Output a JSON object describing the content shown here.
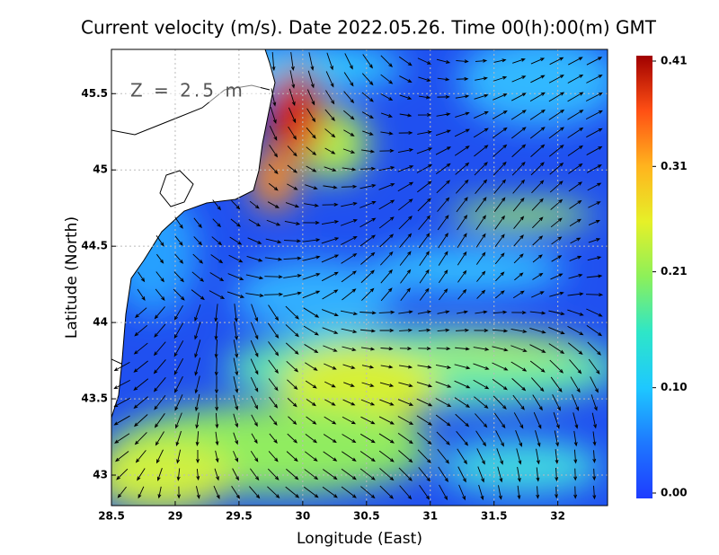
{
  "chart_data": {
    "type": "vector-field",
    "title": "Current velocity (m/s). Date 2022.05.26. Time 00(h):00(m) GMT",
    "annotation": "Z = 2.5 m",
    "xlabel": "Longitude (East)",
    "ylabel": "Latitude (North)",
    "xlim": [
      28.5,
      32.39
    ],
    "ylim": [
      42.8,
      45.79
    ],
    "xticks": [
      28.5,
      29,
      29.5,
      30,
      30.5,
      31,
      31.5,
      32
    ],
    "yticks": [
      43,
      43.5,
      44,
      44.5,
      45,
      45.5
    ],
    "grid": true,
    "colorbar": {
      "lim": [
        0,
        0.41
      ],
      "ticks": [
        {
          "value": 0,
          "label": "0.00"
        },
        {
          "value": 0.1,
          "label": "0.10"
        },
        0.21,
        0.31,
        0.41
      ],
      "colormap": [
        "#1e3cff",
        "#1e78ff",
        "#1ec8ff",
        "#2ee6c8",
        "#8cf05a",
        "#e6f028",
        "#ffb41e",
        "#ff5014",
        "#a00000"
      ]
    }
  }
}
